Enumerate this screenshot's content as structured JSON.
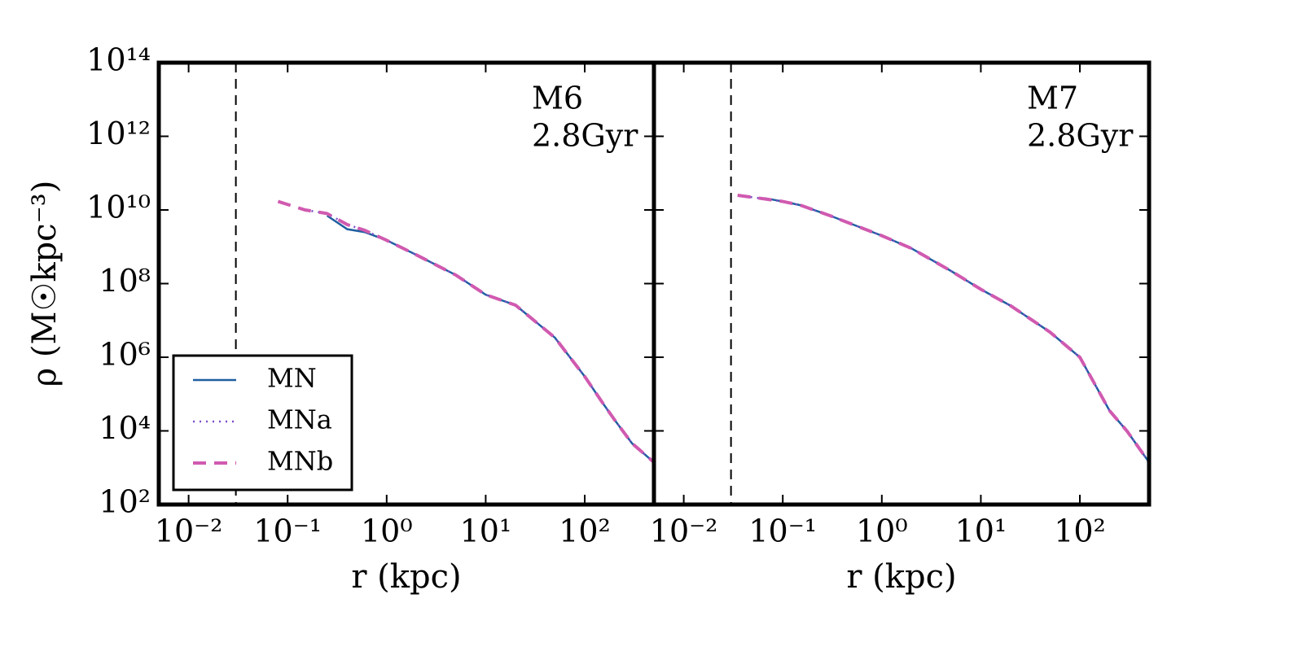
{
  "chart_data": [
    {
      "type": "line",
      "xlabel": "r (kpc)",
      "ylabel": "ρ (M☉kpc⁻³)",
      "annotation": [
        "M6",
        "2.8Gyr"
      ],
      "xscale": "log",
      "yscale": "log",
      "xlim": [
        0.005,
        500
      ],
      "ylim": [
        100,
        100000000000000
      ],
      "xticks": [
        {
          "value": 0.01,
          "label": "10⁻²"
        },
        {
          "value": 0.1,
          "label": "10⁻¹"
        },
        {
          "value": 1,
          "label": "10⁰"
        },
        {
          "value": 10,
          "label": "10¹"
        },
        {
          "value": 100,
          "label": "10²"
        }
      ],
      "yticks": [
        {
          "value": 100,
          "label": "10²"
        },
        {
          "value": 10000,
          "label": "10⁴"
        },
        {
          "value": 1000000,
          "label": "10⁶"
        },
        {
          "value": 100000000,
          "label": "10⁸"
        },
        {
          "value": 10000000000,
          "label": "10¹⁰"
        },
        {
          "value": 1000000000000,
          "label": "10¹²"
        },
        {
          "value": 100000000000000,
          "label": "10¹⁴"
        }
      ],
      "ytick_labels": true,
      "vline_x": 0.03,
      "legend": "lower left",
      "x": [
        0.08,
        0.15,
        0.25,
        0.4,
        0.6,
        1,
        2,
        5,
        10,
        20,
        50,
        100,
        150,
        200,
        300,
        500
      ],
      "series": [
        {
          "name": "MN",
          "color": "#1f5fa0",
          "style": "solid",
          "values": [
            null,
            null,
            7000000000,
            3000000000,
            2500000000,
            1500000000,
            600000000,
            170000000,
            50000000,
            26000000,
            3400000,
            300000,
            60000,
            20000,
            4600,
            1400
          ]
        },
        {
          "name": "MNa",
          "color": "#7b4fc9",
          "style": "dotted",
          "values": [
            null,
            10000000000,
            8000000000,
            4000000000,
            2800000000,
            1500000000,
            600000000,
            170000000,
            50000000,
            26000000,
            3400000,
            300000,
            60000,
            20000,
            4600,
            1400
          ]
        },
        {
          "name": "MNb",
          "color": "#d05ab0",
          "style": "dashed",
          "values": [
            17000000000,
            10000000000,
            8000000000,
            4000000000,
            2800000000,
            1500000000,
            600000000,
            170000000,
            50000000,
            26000000,
            3400000,
            300000,
            60000,
            20000,
            4600,
            1400
          ]
        }
      ]
    },
    {
      "type": "line",
      "xlabel": "r (kpc)",
      "annotation": [
        "M7",
        "2.8Gyr"
      ],
      "xscale": "log",
      "yscale": "log",
      "xlim": [
        0.005,
        500
      ],
      "ylim": [
        100,
        100000000000000
      ],
      "xticks": [
        {
          "value": 0.01,
          "label": "10⁻²"
        },
        {
          "value": 0.1,
          "label": "10⁻¹"
        },
        {
          "value": 1,
          "label": "10⁰"
        },
        {
          "value": 10,
          "label": "10¹"
        },
        {
          "value": 100,
          "label": "10²"
        }
      ],
      "yticks": [
        100,
        10000,
        1000000,
        100000000,
        10000000000,
        1000000000000,
        100000000000000
      ],
      "ytick_labels": false,
      "vline_x": 0.03,
      "x": [
        0.035,
        0.065,
        0.1,
        0.15,
        0.3,
        1,
        2,
        5,
        10,
        20,
        50,
        100,
        150,
        200,
        300,
        500
      ],
      "series": [
        {
          "name": "MN",
          "color": "#1f5fa0",
          "style": "solid",
          "values": [
            null,
            21000000000,
            17000000000,
            13500000000,
            7000000000,
            2000000000,
            900000000,
            220000000,
            70000000,
            25000000,
            4800000,
            1000000,
            140000,
            35000,
            9800,
            1400
          ]
        },
        {
          "name": "MNa",
          "color": "#7b4fc9",
          "style": "dotted",
          "values": [
            25000000000,
            20000000000,
            17000000000,
            13500000000,
            7000000000,
            2000000000,
            900000000,
            220000000,
            70000000,
            25000000,
            4800000,
            1000000,
            140000,
            35000,
            9800,
            1400
          ]
        },
        {
          "name": "MNb",
          "color": "#d05ab0",
          "style": "dashed",
          "values": [
            25000000000,
            20000000000,
            17000000000,
            13500000000,
            7000000000,
            2000000000,
            900000000,
            220000000,
            70000000,
            25000000,
            4800000,
            1000000,
            140000,
            35000,
            9800,
            1400
          ]
        }
      ]
    }
  ]
}
